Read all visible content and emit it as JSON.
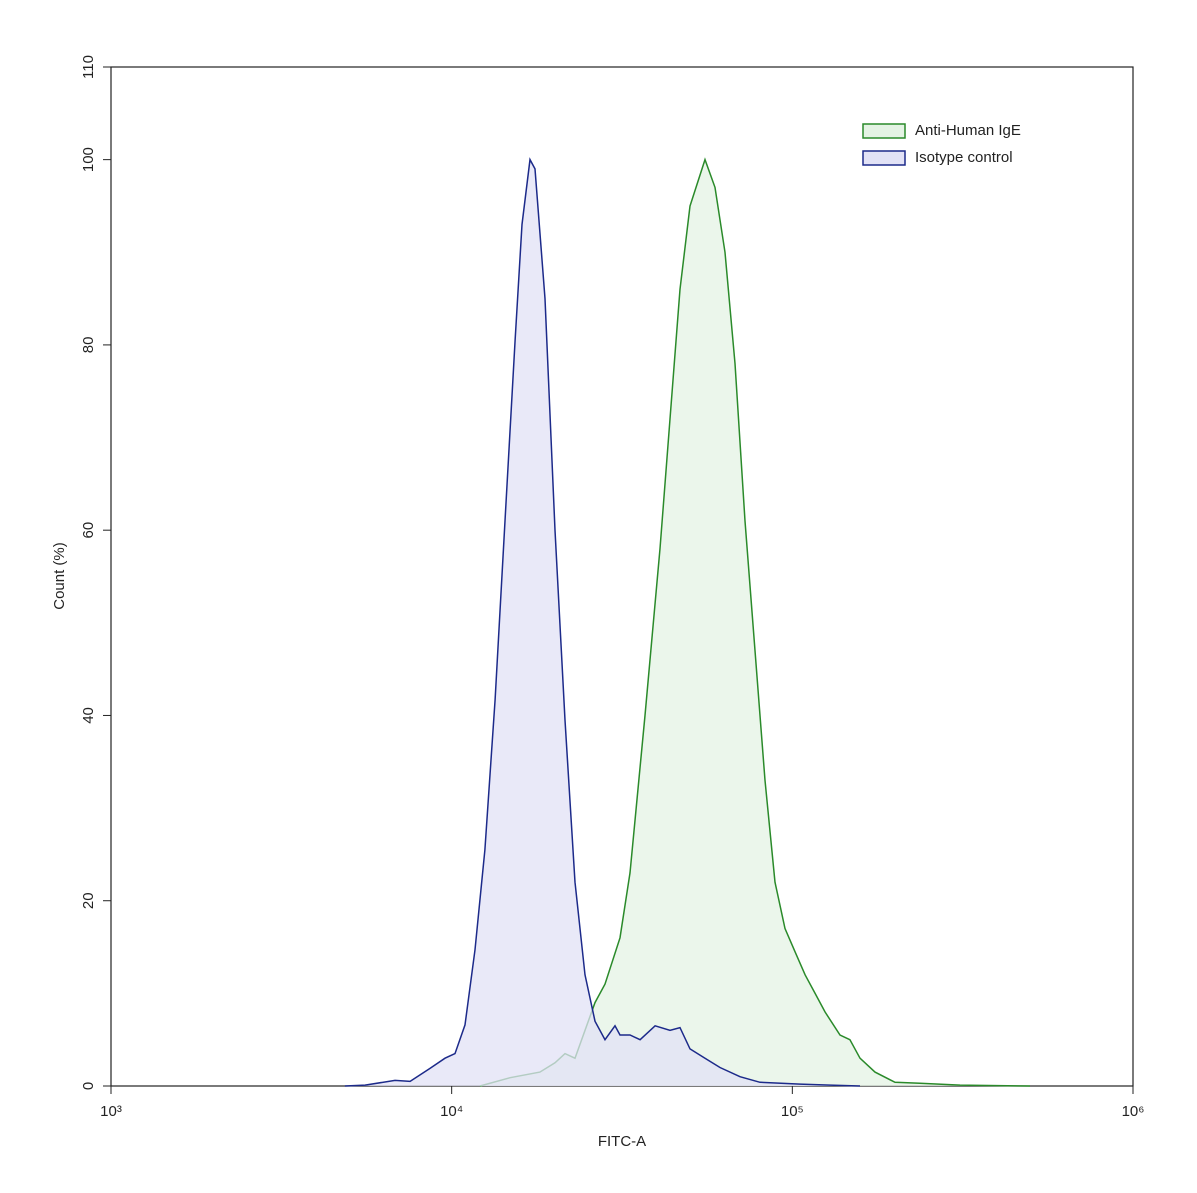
{
  "chart_data": {
    "type": "histogram-overlay",
    "x_label": "FITC-A",
    "y_label": "Count (%)",
    "xscale": "log",
    "xlim": [
      1000,
      1000000
    ],
    "xticks": [
      {
        "value": 1000,
        "label": "10³"
      },
      {
        "value": 10000,
        "label": "10⁴"
      },
      {
        "value": 100000,
        "label": "10⁵"
      },
      {
        "value": 1000000,
        "label": "10⁶"
      }
    ],
    "ylim": [
      0,
      110
    ],
    "yticks": [
      0,
      20,
      40,
      60,
      80,
      100,
      110
    ],
    "legend": "top-right",
    "series": [
      {
        "name": "Anti-Human IgE",
        "color": "#2a8a2a",
        "fill": "#e4f3e4",
        "x": [
          12110,
          14840,
          18160,
          20110,
          21510,
          23010,
          24630,
          26350,
          28190,
          31200,
          33390,
          36950,
          40890,
          43750,
          46810,
          50080,
          55420,
          59290,
          63440,
          67890,
          72620,
          77710,
          83130,
          88960,
          95190,
          101800,
          109000,
          116600,
          124700,
          138000,
          147600,
          158000,
          174800,
          200100,
          236900,
          310500,
          498500
        ],
        "values": [
          0,
          0.9,
          1.5,
          2.5,
          3.5,
          3,
          6,
          9,
          11,
          16,
          23,
          40,
          58,
          72,
          86,
          95,
          100,
          97,
          90,
          78,
          61,
          47,
          33,
          22,
          17,
          14.5,
          12,
          10,
          8,
          5.5,
          5,
          3,
          1.5,
          0.4,
          0.3,
          0.1,
          0
        ]
      },
      {
        "name": "Isotype control",
        "color": "#1c2a8a",
        "fill": "#e2e2f6",
        "x": [
          4860,
          5570,
          6820,
          7550,
          8640,
          9560,
          10230,
          10940,
          11710,
          12520,
          13410,
          14340,
          15350,
          16090,
          16980,
          17560,
          18790,
          20110,
          21510,
          23010,
          24630,
          26350,
          28190,
          30170,
          31200,
          33390,
          35730,
          39540,
          43750,
          46810,
          50080,
          55420,
          61330,
          70220,
          80380,
          105300,
          129000,
          158000
        ],
        "values": [
          0,
          0.1,
          0.6,
          0.5,
          1.9,
          3,
          3.5,
          6.6,
          14.7,
          25.5,
          41.7,
          61,
          80.5,
          93,
          100,
          99,
          85,
          60,
          39.5,
          22,
          12,
          7,
          5,
          6.5,
          5.5,
          5.5,
          5,
          6.5,
          6,
          6.3,
          4,
          3,
          2,
          1,
          0.4,
          0.2,
          0.1,
          0
        ]
      }
    ]
  }
}
